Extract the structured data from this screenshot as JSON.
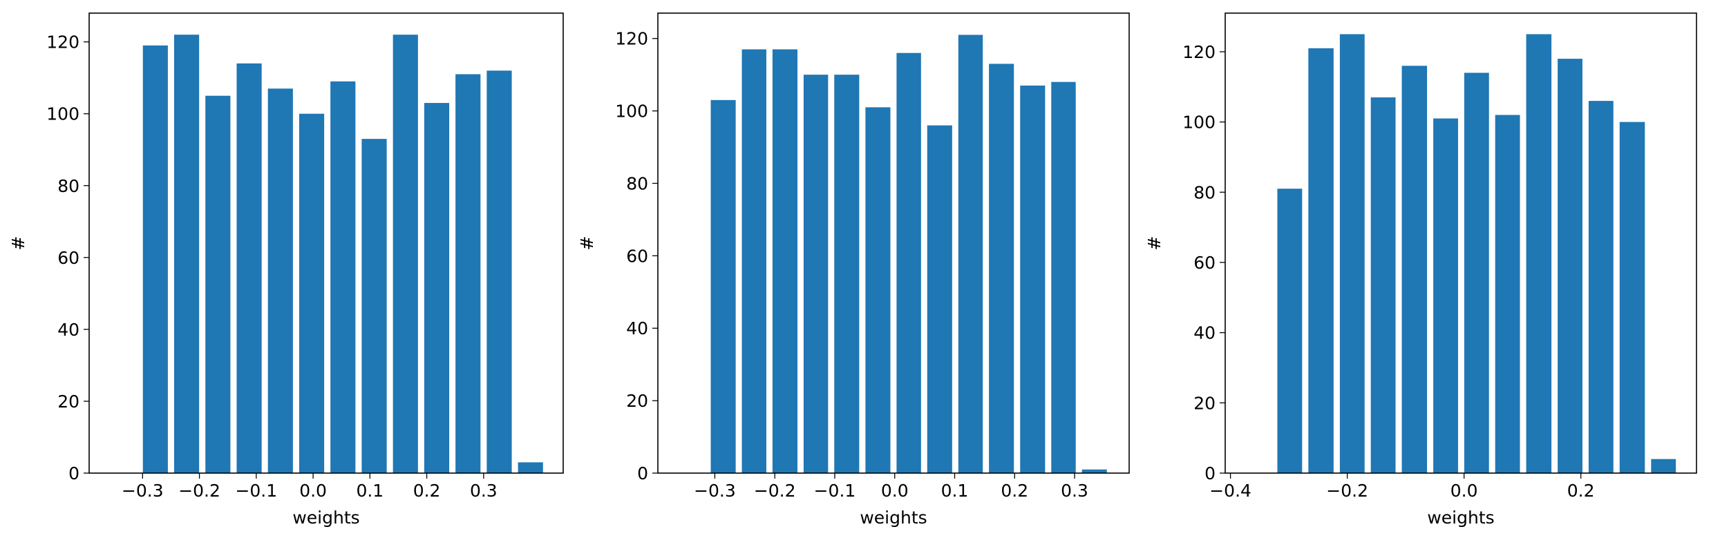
{
  "chart_data": [
    {
      "type": "histogram",
      "xlabel": "weights",
      "ylabel": "#",
      "color": "#1f77b4",
      "bins": [
        -0.305,
        -0.25,
        -0.195,
        -0.14,
        -0.085,
        -0.03,
        0.025,
        0.08,
        0.135,
        0.19,
        0.245,
        0.3,
        0.355,
        0.41
      ],
      "values": [
        119,
        122,
        105,
        114,
        107,
        100,
        109,
        93,
        122,
        103,
        111,
        112,
        3
      ],
      "xlim": [
        -0.394,
        0.44
      ],
      "ylim": [
        0,
        128
      ],
      "xticks": [
        {
          "value": -0.3,
          "label": "−0.3"
        },
        {
          "value": -0.2,
          "label": "−0.2"
        },
        {
          "value": -0.1,
          "label": "−0.1"
        },
        {
          "value": 0,
          "label": "0.0"
        },
        0.1,
        0.2,
        0.3
      ],
      "yticks": [
        0,
        20,
        40,
        60,
        80,
        100,
        120
      ]
    },
    {
      "type": "histogram",
      "xlabel": "weights",
      "ylabel": "#",
      "color": "#1f77b4",
      "bins": [
        -0.312,
        -0.26,
        -0.209,
        -0.157,
        -0.106,
        -0.054,
        -0.002,
        0.049,
        0.101,
        0.152,
        0.204,
        0.256,
        0.307,
        0.359
      ],
      "values": [
        103,
        117,
        117,
        110,
        110,
        101,
        116,
        96,
        121,
        113,
        107,
        108,
        1
      ],
      "xlim": [
        -0.395,
        0.391
      ],
      "ylim": [
        0,
        127
      ],
      "xticks": [
        {
          "value": -0.3,
          "label": "−0.3"
        },
        {
          "value": -0.2,
          "label": "−0.2"
        },
        {
          "value": -0.1,
          "label": "−0.1"
        },
        {
          "value": 0,
          "label": "0.0"
        },
        0.1,
        0.2,
        0.3
      ],
      "yticks": [
        0,
        20,
        40,
        60,
        80,
        100,
        120
      ]
    },
    {
      "type": "histogram",
      "xlabel": "weights",
      "ylabel": "#",
      "color": "#1f77b4",
      "bins": [
        -0.325,
        -0.272,
        -0.218,
        -0.165,
        -0.112,
        -0.058,
        -0.005,
        0.048,
        0.101,
        0.155,
        0.208,
        0.261,
        0.315,
        0.368
      ],
      "values": [
        81,
        121,
        125,
        107,
        116,
        101,
        114,
        102,
        125,
        118,
        106,
        100,
        4
      ],
      "xlim": [
        -0.409,
        0.398
      ],
      "ylim": [
        0,
        131
      ],
      "xticks": [
        {
          "value": -0.4,
          "label": "−0.4"
        },
        {
          "value": -0.2,
          "label": "−0.2"
        },
        {
          "value": 0,
          "label": "0.0"
        },
        0.2
      ],
      "yticks": [
        0,
        20,
        40,
        60,
        80,
        100,
        120
      ]
    }
  ]
}
